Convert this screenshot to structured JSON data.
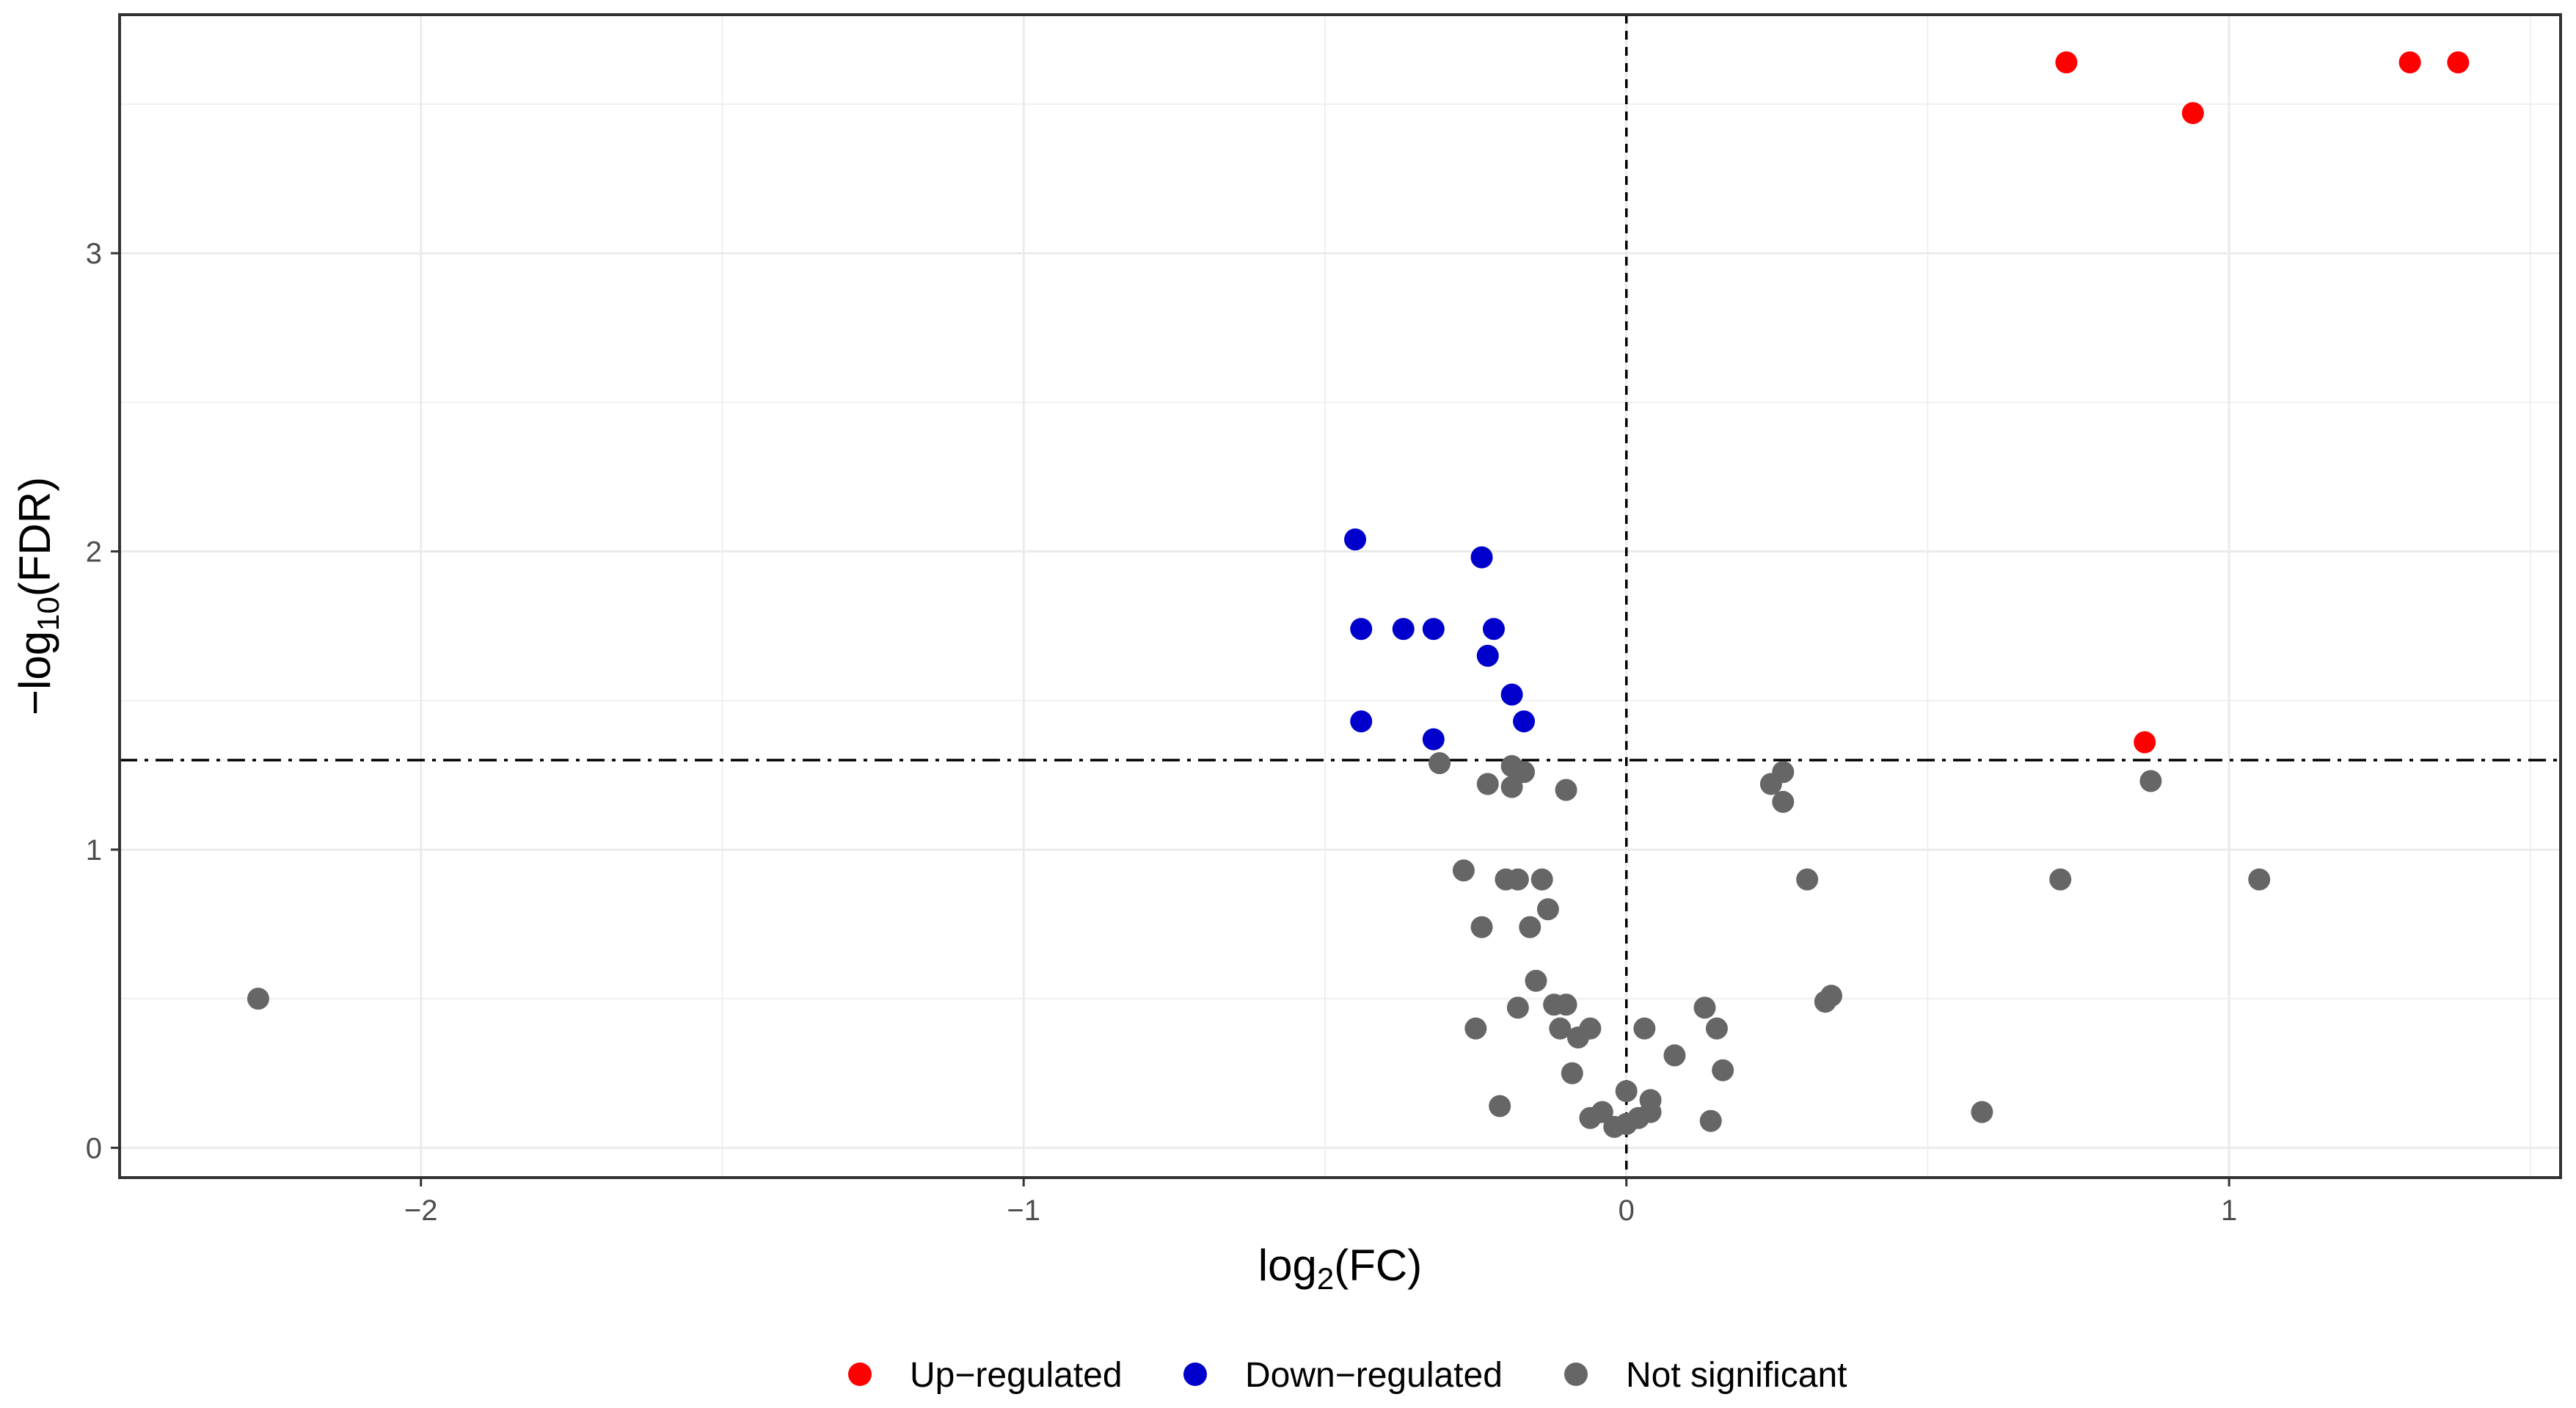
{
  "chart_data": {
    "type": "scatter",
    "title": "",
    "xlabel": {
      "base": "log",
      "sub": "2",
      "rest": "(FC)"
    },
    "ylabel": {
      "pre": "−log",
      "sub": "10",
      "rest": "(FDR)"
    },
    "xlim": [
      -2.5,
      1.55
    ],
    "ylim": [
      -0.1,
      3.8
    ],
    "x_ticks": [
      -2,
      -1,
      0,
      1
    ],
    "x_tick_labels": [
      "−2",
      "−1",
      "0",
      "1"
    ],
    "y_ticks": [
      0,
      1,
      2,
      3
    ],
    "y_tick_labels": [
      "0",
      "1",
      "2",
      "3"
    ],
    "grid": true,
    "reference_lines": {
      "vertical_x": 0,
      "horizontal_y": 1.3
    },
    "legend_position": "bottom",
    "series": [
      {
        "name": "Up-regulated",
        "label": "Up−regulated",
        "color": "#ff0000",
        "points": [
          [
            0.73,
            3.64
          ],
          [
            1.3,
            3.64
          ],
          [
            1.38,
            3.64
          ],
          [
            0.94,
            3.47
          ],
          [
            0.86,
            1.36
          ]
        ]
      },
      {
        "name": "Down-regulated",
        "label": "Down−regulated",
        "color": "#0000cc",
        "points": [
          [
            -0.45,
            2.04
          ],
          [
            -0.24,
            1.98
          ],
          [
            -0.44,
            1.74
          ],
          [
            -0.37,
            1.74
          ],
          [
            -0.32,
            1.74
          ],
          [
            -0.22,
            1.74
          ],
          [
            -0.23,
            1.65
          ],
          [
            -0.19,
            1.52
          ],
          [
            -0.44,
            1.43
          ],
          [
            -0.17,
            1.43
          ],
          [
            -0.32,
            1.37
          ]
        ]
      },
      {
        "name": "Not significant",
        "label": "Not significant",
        "color": "#666666",
        "points": [
          [
            -2.27,
            0.5
          ],
          [
            -0.31,
            1.29
          ],
          [
            -0.19,
            1.28
          ],
          [
            -0.17,
            1.26
          ],
          [
            -0.23,
            1.22
          ],
          [
            -0.19,
            1.21
          ],
          [
            -0.1,
            1.2
          ],
          [
            0.24,
            1.22
          ],
          [
            0.26,
            1.26
          ],
          [
            0.26,
            1.16
          ],
          [
            0.87,
            1.23
          ],
          [
            -0.27,
            0.93
          ],
          [
            -0.2,
            0.9
          ],
          [
            -0.18,
            0.9
          ],
          [
            -0.14,
            0.9
          ],
          [
            0.3,
            0.9
          ],
          [
            0.72,
            0.9
          ],
          [
            1.05,
            0.9
          ],
          [
            -0.13,
            0.8
          ],
          [
            -0.24,
            0.74
          ],
          [
            -0.16,
            0.74
          ],
          [
            -0.15,
            0.56
          ],
          [
            -0.18,
            0.47
          ],
          [
            -0.12,
            0.48
          ],
          [
            -0.1,
            0.48
          ],
          [
            0.13,
            0.47
          ],
          [
            0.33,
            0.49
          ],
          [
            0.34,
            0.51
          ],
          [
            -0.25,
            0.4
          ],
          [
            -0.11,
            0.4
          ],
          [
            -0.08,
            0.37
          ],
          [
            -0.06,
            0.4
          ],
          [
            0.03,
            0.4
          ],
          [
            0.15,
            0.4
          ],
          [
            0.08,
            0.31
          ],
          [
            0.16,
            0.26
          ],
          [
            -0.09,
            0.25
          ],
          [
            -0.21,
            0.14
          ],
          [
            0.04,
            0.16
          ],
          [
            0.0,
            0.19
          ],
          [
            -0.06,
            0.1
          ],
          [
            -0.04,
            0.12
          ],
          [
            -0.02,
            0.07
          ],
          [
            0.0,
            0.08
          ],
          [
            0.02,
            0.1
          ],
          [
            0.04,
            0.12
          ],
          [
            0.14,
            0.09
          ],
          [
            0.59,
            0.12
          ]
        ]
      }
    ]
  }
}
